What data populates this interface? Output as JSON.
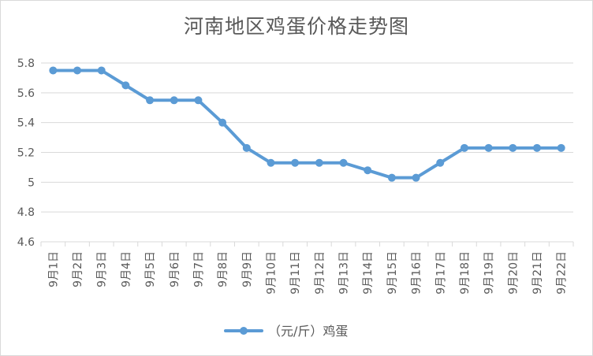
{
  "chart_data": {
    "type": "line",
    "title": "河南地区鸡蛋价格走势图",
    "xlabel": "",
    "ylabel": "",
    "categories": [
      "9月1日",
      "9月2日",
      "9月3日",
      "9月4日",
      "9月5日",
      "9月6日",
      "9月7日",
      "9月8日",
      "9月9日",
      "9月10日",
      "9月11日",
      "9月12日",
      "9月13日",
      "9月14日",
      "9月15日",
      "9月16日",
      "9月17日",
      "9月18日",
      "9月19日",
      "9月20日",
      "9月21日",
      "9月22日"
    ],
    "series": [
      {
        "name": "（元/斤）鸡蛋",
        "values": [
          5.75,
          5.75,
          5.75,
          5.65,
          5.55,
          5.55,
          5.55,
          5.4,
          5.23,
          5.13,
          5.13,
          5.13,
          5.13,
          5.08,
          5.03,
          5.03,
          5.13,
          5.23,
          5.23,
          5.23,
          5.23,
          5.23
        ]
      }
    ],
    "ylim": [
      4.6,
      5.8
    ],
    "yticks": [
      "4.6",
      "4.8",
      "5",
      "5.2",
      "5.4",
      "5.6",
      "5.8"
    ],
    "grid": true,
    "legend_position": "bottom",
    "colors": {
      "series": "#5b9bd5",
      "grid": "#d9d9d9",
      "text": "#595959"
    }
  }
}
